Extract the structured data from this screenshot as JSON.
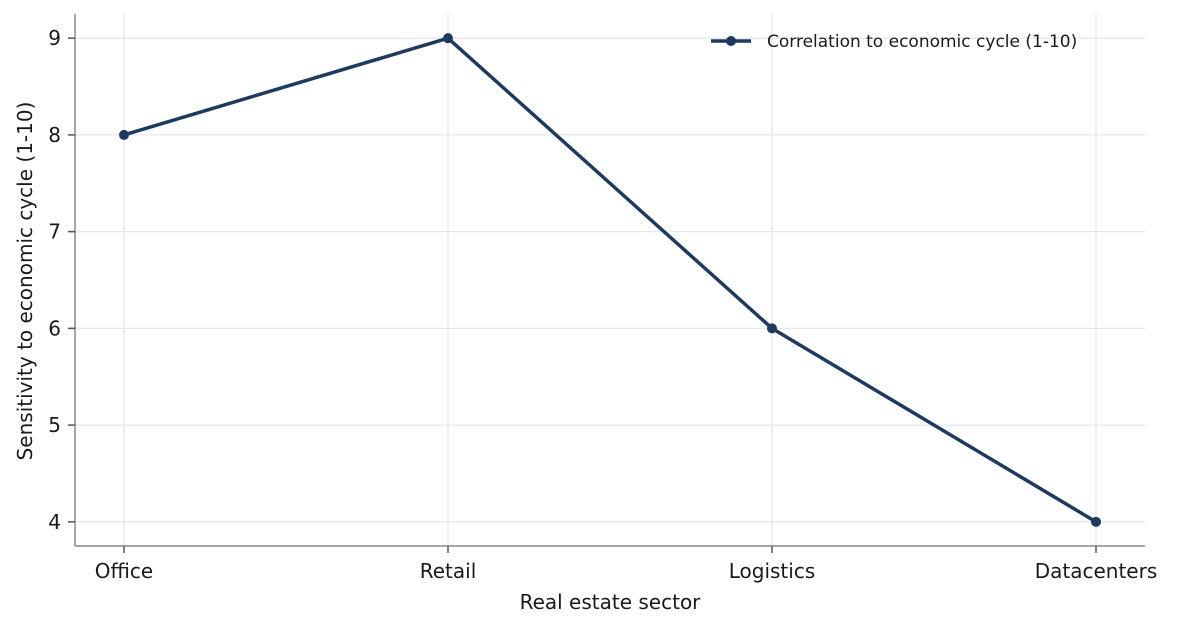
{
  "chart_data": {
    "type": "line",
    "title": "",
    "xlabel": "Real estate sector",
    "ylabel": "Sensitivity to economic cycle (1-10)",
    "categories": [
      "Office",
      "Retail",
      "Logistics",
      "Datacenters"
    ],
    "series": [
      {
        "name": "Correlation to economic cycle (1-10)",
        "values": [
          8,
          9,
          6,
          4
        ],
        "color": "#1f3a5f"
      }
    ],
    "ylim": [
      3.75,
      9.25
    ],
    "yticks": [
      4,
      5,
      6,
      7,
      8,
      9
    ],
    "grid": true,
    "legend_position": "top-right"
  }
}
